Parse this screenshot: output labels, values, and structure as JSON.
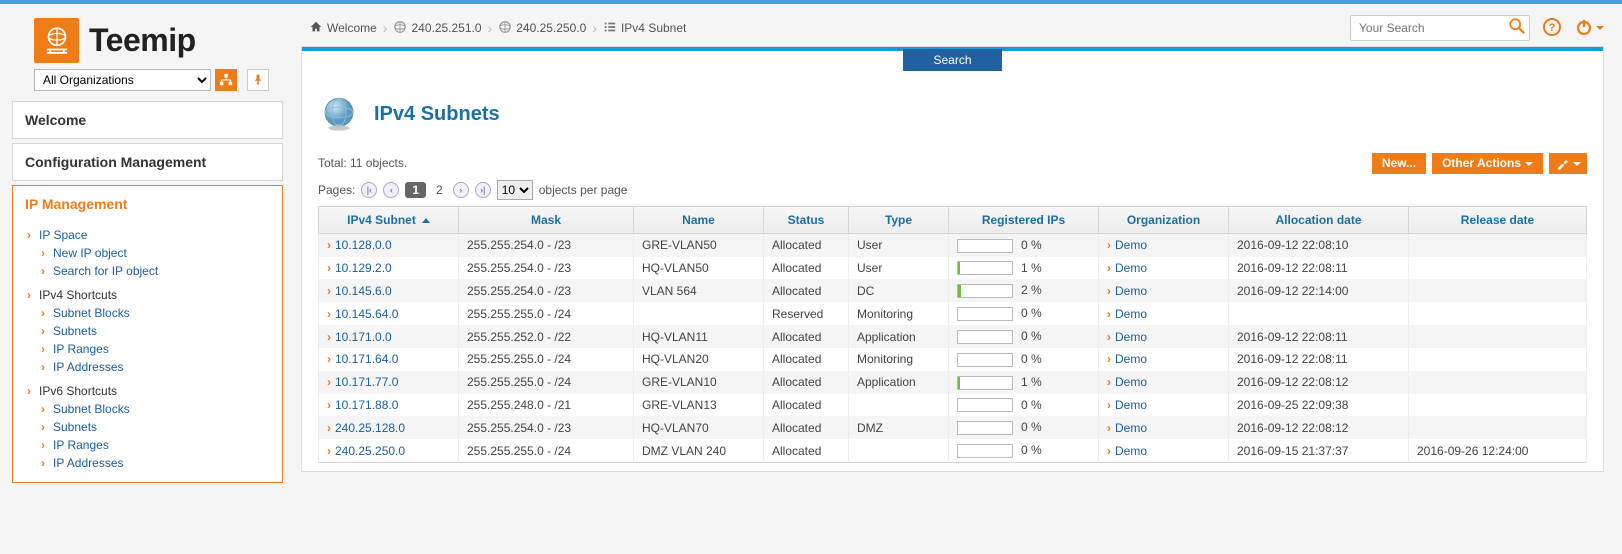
{
  "brand": {
    "name": "Teemip",
    "accent": "#ef7c16"
  },
  "org_selector": {
    "value": "All Organizations"
  },
  "breadcrumbs": {
    "home_label": "Welcome",
    "items": [
      {
        "label": "240.25.251.0"
      },
      {
        "label": "240.25.250.0"
      },
      {
        "label": "IPv4 Subnet"
      }
    ]
  },
  "search": {
    "placeholder": "Your Search"
  },
  "left_nav": {
    "welcome": "Welcome",
    "config_mgmt": "Configuration Management",
    "ip_mgmt": {
      "title": "IP Management",
      "ip_space": "IP Space",
      "new_ip_object": "New IP object",
      "search_ip_object": "Search for IP object",
      "ipv4_shortcuts_label": "IPv4 Shortcuts",
      "ipv4": {
        "subnet_blocks": "Subnet Blocks",
        "subnets": "Subnets",
        "ip_ranges": "IP Ranges",
        "ip_addresses": "IP Addresses"
      },
      "ipv6_shortcuts_label": "IPv6 Shortcuts",
      "ipv6": {
        "subnet_blocks": "Subnet Blocks",
        "subnets": "Subnets",
        "ip_ranges": "IP Ranges",
        "ip_addresses": "IP Addresses"
      }
    }
  },
  "page": {
    "title": "IPv4 Subnets",
    "total_label": "Total: 11 objects.",
    "pages_label": "Pages:",
    "page_current": "1",
    "page_other": "2",
    "per_page_value": "10",
    "per_page_suffix": "objects per page",
    "search_tab": "Search",
    "btn_new": "New...",
    "btn_other_actions": "Other Actions"
  },
  "table": {
    "columns": {
      "subnet": "IPv4 Subnet",
      "mask": "Mask",
      "name": "Name",
      "status": "Status",
      "type": "Type",
      "reg_ips": "Registered IPs",
      "org": "Organization",
      "alloc": "Allocation date",
      "release": "Release date"
    },
    "rows": [
      {
        "subnet": "10.128.0.0",
        "mask": "255.255.254.0 - /23",
        "name": "GRE-VLAN50",
        "status": "Allocated",
        "type": "User",
        "ip_pct": "0 %",
        "ip_fill": 0,
        "org": "Demo",
        "alloc": "2016-09-12 22:08:10",
        "release": ""
      },
      {
        "subnet": "10.129.2.0",
        "mask": "255.255.254.0 - /23",
        "name": "HQ-VLAN50",
        "status": "Allocated",
        "type": "User",
        "ip_pct": "1 %",
        "ip_fill": 2,
        "org": "Demo",
        "alloc": "2016-09-12 22:08:11",
        "release": ""
      },
      {
        "subnet": "10.145.6.0",
        "mask": "255.255.254.0 - /23",
        "name": "VLAN 564",
        "status": "Allocated",
        "type": "DC",
        "ip_pct": "2 %",
        "ip_fill": 3,
        "org": "Demo",
        "alloc": "2016-09-12 22:14:00",
        "release": ""
      },
      {
        "subnet": "10.145.64.0",
        "mask": "255.255.255.0 - /24",
        "name": "",
        "status": "Reserved",
        "type": "Monitoring",
        "ip_pct": "0 %",
        "ip_fill": 0,
        "org": "Demo",
        "alloc": "",
        "release": ""
      },
      {
        "subnet": "10.171.0.0",
        "mask": "255.255.252.0 - /22",
        "name": "HQ-VLAN11",
        "status": "Allocated",
        "type": "Application",
        "ip_pct": "0 %",
        "ip_fill": 0,
        "org": "Demo",
        "alloc": "2016-09-12 22:08:11",
        "release": ""
      },
      {
        "subnet": "10.171.64.0",
        "mask": "255.255.255.0 - /24",
        "name": "HQ-VLAN20",
        "status": "Allocated",
        "type": "Monitoring",
        "ip_pct": "0 %",
        "ip_fill": 0,
        "org": "Demo",
        "alloc": "2016-09-12 22:08:11",
        "release": ""
      },
      {
        "subnet": "10.171.77.0",
        "mask": "255.255.255.0 - /24",
        "name": "GRE-VLAN10",
        "status": "Allocated",
        "type": "Application",
        "ip_pct": "1 %",
        "ip_fill": 2,
        "org": "Demo",
        "alloc": "2016-09-12 22:08:12",
        "release": ""
      },
      {
        "subnet": "10.171.88.0",
        "mask": "255.255.248.0 - /21",
        "name": "GRE-VLAN13",
        "status": "Allocated",
        "type": "",
        "ip_pct": "0 %",
        "ip_fill": 0,
        "org": "Demo",
        "alloc": "2016-09-25 22:09:38",
        "release": ""
      },
      {
        "subnet": "240.25.128.0",
        "mask": "255.255.254.0 - /23",
        "name": "HQ-VLAN70",
        "status": "Allocated",
        "type": "DMZ",
        "ip_pct": "0 %",
        "ip_fill": 0,
        "org": "Demo",
        "alloc": "2016-09-12 22:08:12",
        "release": ""
      },
      {
        "subnet": "240.25.250.0",
        "mask": "255.255.255.0 - /24",
        "name": "DMZ VLAN 240",
        "status": "Allocated",
        "type": "",
        "ip_pct": "0 %",
        "ip_fill": 0,
        "org": "Demo",
        "alloc": "2016-09-15 21:37:37",
        "release": "2016-09-26 12:24:00"
      }
    ]
  }
}
